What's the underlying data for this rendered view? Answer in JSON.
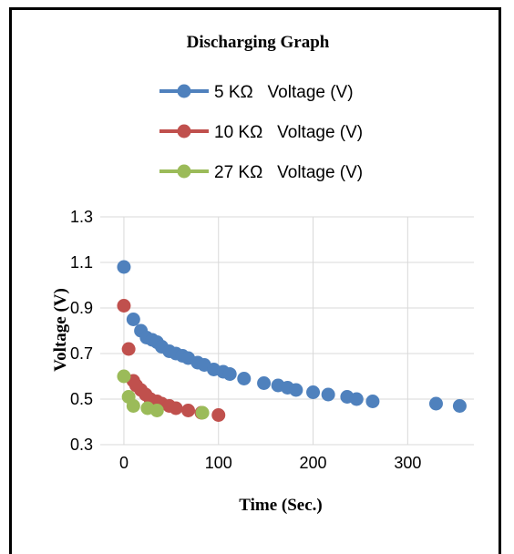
{
  "chart_data": {
    "type": "scatter",
    "title": "Discharging Graph",
    "xlabel": "Time (Sec.)",
    "ylabel": "Voltage (V)",
    "xlim": [
      -25,
      370
    ],
    "ylim": [
      0.3,
      1.3
    ],
    "xticks": [
      "0",
      "100",
      "200",
      "300"
    ],
    "yticks": [
      "0.3",
      "0.5",
      "0.7",
      "0.9",
      "1.1",
      "1.3"
    ],
    "grid": true,
    "legend_position": "top",
    "series": [
      {
        "name": "5 KΩ   Voltage (V)",
        "color": "#4f81bd",
        "x": [
          0,
          10,
          18,
          24,
          30,
          35,
          40,
          48,
          55,
          62,
          68,
          78,
          85,
          95,
          105,
          112,
          127,
          148,
          163,
          173,
          182,
          200,
          216,
          236,
          246,
          263,
          330,
          355
        ],
        "y": [
          1.08,
          0.85,
          0.8,
          0.77,
          0.76,
          0.75,
          0.73,
          0.71,
          0.7,
          0.69,
          0.68,
          0.66,
          0.65,
          0.63,
          0.62,
          0.61,
          0.59,
          0.57,
          0.56,
          0.55,
          0.54,
          0.53,
          0.52,
          0.51,
          0.5,
          0.49,
          0.48,
          0.47
        ]
      },
      {
        "name": "10 KΩ   Voltage (V)",
        "color": "#c0504d",
        "x": [
          0,
          5,
          10,
          13,
          18,
          23,
          28,
          35,
          40,
          48,
          55,
          68,
          82,
          100
        ],
        "y": [
          0.91,
          0.72,
          0.58,
          0.56,
          0.54,
          0.52,
          0.5,
          0.49,
          0.48,
          0.47,
          0.46,
          0.45,
          0.44,
          0.43
        ]
      },
      {
        "name": "27 KΩ   Voltage (V)",
        "color": "#9bbb59",
        "x": [
          0,
          5,
          10,
          25,
          35,
          83
        ],
        "y": [
          0.6,
          0.51,
          0.47,
          0.46,
          0.45,
          0.44
        ]
      }
    ]
  }
}
